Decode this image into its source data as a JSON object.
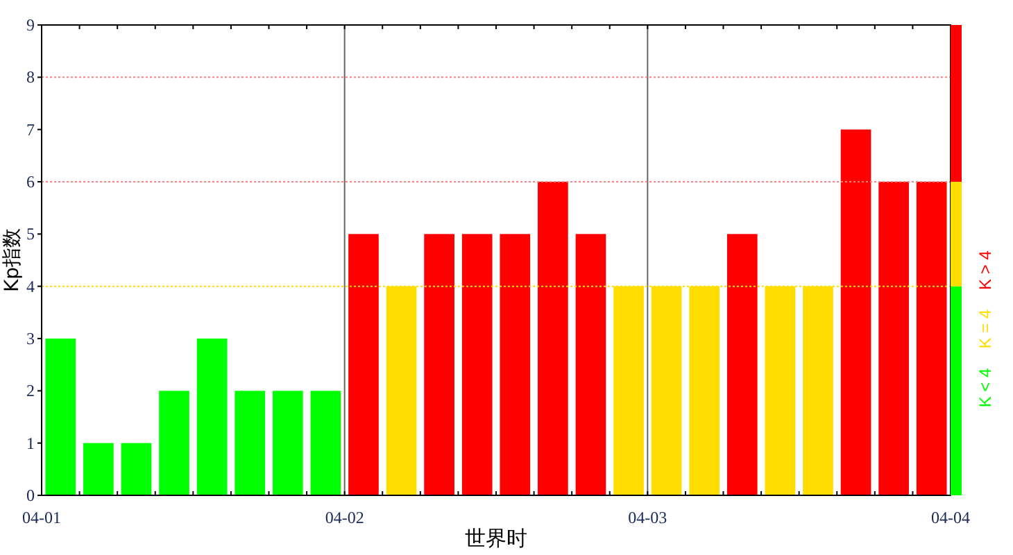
{
  "chart_data": {
    "type": "bar",
    "xlabel": "世界时",
    "ylabel": "Kp指数",
    "categories": [
      null,
      null,
      null,
      null,
      null,
      null,
      null,
      null,
      null,
      null,
      null,
      null,
      null,
      null,
      null,
      null,
      null,
      null,
      null,
      null,
      null,
      null,
      null,
      null
    ],
    "annotations": [
      "04-01",
      "04-02",
      "04-03",
      "04-04"
    ],
    "series": [
      {
        "name": "K < 4",
        "color": "#00ff00",
        "values": [
          3,
          1,
          1,
          2,
          3,
          2,
          2,
          2,
          null,
          null,
          null,
          null,
          null,
          null,
          null,
          null,
          null,
          null,
          null,
          null,
          null,
          null,
          null,
          null
        ]
      },
      {
        "name": "K = 4",
        "color": "#ffdd00",
        "values": [
          null,
          null,
          null,
          null,
          null,
          null,
          null,
          null,
          null,
          4,
          null,
          null,
          null,
          null,
          null,
          4,
          4,
          4,
          null,
          4,
          4,
          null,
          null,
          null
        ]
      },
      {
        "name": "K > 4",
        "color": "#ff0000",
        "values": [
          null,
          null,
          null,
          null,
          null,
          null,
          null,
          null,
          5,
          null,
          5,
          5,
          5,
          6,
          5,
          null,
          null,
          null,
          5,
          null,
          null,
          7,
          6,
          6
        ]
      }
    ],
    "legend": "right",
    "ylim": [
      0,
      9
    ],
    "yticks": [
      0,
      1,
      2,
      3,
      4,
      5,
      6,
      7,
      8,
      9
    ],
    "ref_lines": [
      {
        "axis": "y",
        "value": 4,
        "color": "#ffdd00",
        "line_style": "dotted"
      },
      {
        "axis": "y",
        "value": 6,
        "color": "#ff8080",
        "line_style": "dotted"
      },
      {
        "axis": "y",
        "value": 8,
        "color": "#ff8080",
        "line_style": "dotted"
      }
    ]
  }
}
